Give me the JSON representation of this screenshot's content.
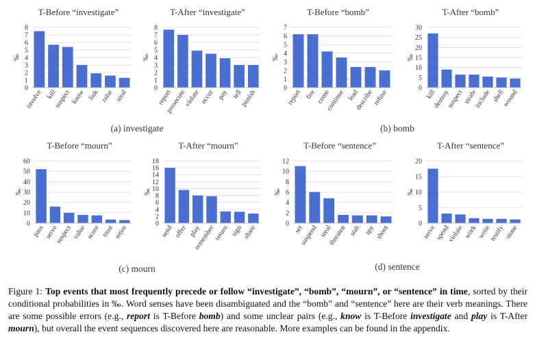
{
  "chart_data": [
    {
      "type": "bar",
      "title": "T-Before “investigate”",
      "ylabel": "‰",
      "color": "#4a6fd0",
      "grid": true,
      "categories": [
        "involve",
        "kill",
        "suspect",
        "know",
        "link",
        "raise",
        "steal"
      ],
      "values": [
        7.5,
        5.7,
        5.4,
        3.0,
        1.9,
        1.6,
        1.3
      ],
      "ylim": [
        0,
        8
      ],
      "yticks": [
        0,
        1,
        2,
        3,
        4,
        5,
        6,
        7,
        8
      ]
    },
    {
      "type": "bar",
      "title": "T-After “investigate”",
      "ylabel": "‰",
      "color": "#4a6fd0",
      "grid": true,
      "categories": [
        "report",
        "prosecute",
        "violate",
        "occur",
        "pay",
        "tell",
        "punish"
      ],
      "values": [
        7.7,
        7.0,
        4.9,
        4.5,
        3.9,
        3.0,
        3.0
      ],
      "ylim": [
        0,
        8
      ],
      "yticks": [
        0,
        1,
        2,
        3,
        4,
        5,
        6,
        7,
        8
      ]
    },
    {
      "type": "bar",
      "title": "T-Before “bomb”",
      "ylabel": "‰",
      "color": "#4a6fd0",
      "grid": true,
      "categories": [
        "report",
        "fire",
        "come",
        "continue",
        "lead",
        "describe",
        "refuse"
      ],
      "values": [
        6.2,
        6.2,
        4.2,
        3.5,
        2.4,
        2.4,
        2.0
      ],
      "ylim": [
        0,
        7
      ],
      "yticks": [
        0,
        1,
        2,
        3,
        4,
        5,
        6,
        7
      ]
    },
    {
      "type": "bar",
      "title": "T-After “bomb”",
      "ylabel": "‰",
      "color": "#4a6fd0",
      "grid": true,
      "categories": [
        "kill",
        "destroy",
        "suspect",
        "strafe",
        "include",
        "shell",
        "wound"
      ],
      "values": [
        27,
        9,
        6.5,
        6.5,
        5.5,
        5,
        4.5
      ],
      "ylim": [
        0,
        30
      ],
      "yticks": [
        0,
        5,
        10,
        15,
        20,
        25,
        30
      ]
    },
    {
      "type": "bar",
      "title": "T-Before “mourn”",
      "ylabel": "‰",
      "color": "#4a6fd0",
      "grid": true,
      "categories": [
        "pass",
        "serve",
        "suspect",
        "value",
        "score",
        "trust",
        "retire"
      ],
      "values": [
        52,
        16,
        10,
        8,
        7.5,
        3.5,
        3
      ],
      "ylim": [
        0,
        60
      ],
      "yticks": [
        0,
        10,
        20,
        30,
        40,
        50,
        60
      ]
    },
    {
      "type": "bar",
      "title": "T-After “mourn”",
      "ylabel": "‰",
      "color": "#4a6fd0",
      "grid": true,
      "categories": [
        "send",
        "offer",
        "play",
        "remember",
        "return",
        "sign",
        "share"
      ],
      "values": [
        16,
        9.6,
        8,
        7.8,
        3.4,
        3.3,
        2.8
      ],
      "ylim": [
        0,
        18
      ],
      "yticks": [
        0,
        2,
        4,
        6,
        8,
        10,
        12,
        14,
        16,
        18
      ]
    },
    {
      "type": "bar",
      "title": "T-Before “sentence”",
      "ylabel": "‰",
      "color": "#4a6fd0",
      "grid": true,
      "categories": [
        "set",
        "suspend",
        "steal",
        "threaten",
        "stab",
        "spy",
        "shoot"
      ],
      "values": [
        11,
        6,
        4.8,
        1.6,
        1.5,
        1.5,
        1.3
      ],
      "ylim": [
        0,
        12
      ],
      "yticks": [
        0,
        2,
        4,
        6,
        8,
        10,
        12
      ]
    },
    {
      "type": "bar",
      "title": "T-After “sentence”",
      "ylabel": "‰",
      "color": "#4a6fd0",
      "grid": true,
      "categories": [
        "serve",
        "spend",
        "violate",
        "work",
        "write",
        "testify",
        "stone"
      ],
      "values": [
        17.5,
        3.1,
        2.8,
        1.6,
        1.4,
        1.4,
        1.2
      ],
      "ylim": [
        0,
        20
      ],
      "yticks": [
        0,
        5,
        10,
        15,
        20
      ]
    }
  ],
  "subcaptions": [
    "(a) investigate",
    "(b) bomb",
    "(c) mourn",
    "(d) sentence"
  ],
  "caption": [
    {
      "text": "Figure 1: "
    },
    {
      "text": "Top events that most frequently precede or follow “investigate”, “bomb”, “mourn”, or “sentence” in time",
      "bold": true
    },
    {
      "text": ", sorted by their conditional probabilities in ‰. Word senses have been disambiguated and the “bomb” and “sentence” here are their verb meanings. There are some possible errors (e.g., "
    },
    {
      "text": "report",
      "bold": true,
      "italic": true
    },
    {
      "text": " is T-Before "
    },
    {
      "text": "bomb",
      "bold": true,
      "italic": true
    },
    {
      "text": ") and some unclear pairs (e.g., "
    },
    {
      "text": "know",
      "bold": true,
      "italic": true
    },
    {
      "text": " is T-Before "
    },
    {
      "text": "investigate",
      "bold": true,
      "italic": true
    },
    {
      "text": " and "
    },
    {
      "text": "play",
      "bold": true,
      "italic": true
    },
    {
      "text": " is T-After "
    },
    {
      "text": "mourn",
      "bold": true,
      "italic": true
    },
    {
      "text": "), but overall the event sequences discovered here are reasonable. More examples can be found in the appendix."
    }
  ]
}
